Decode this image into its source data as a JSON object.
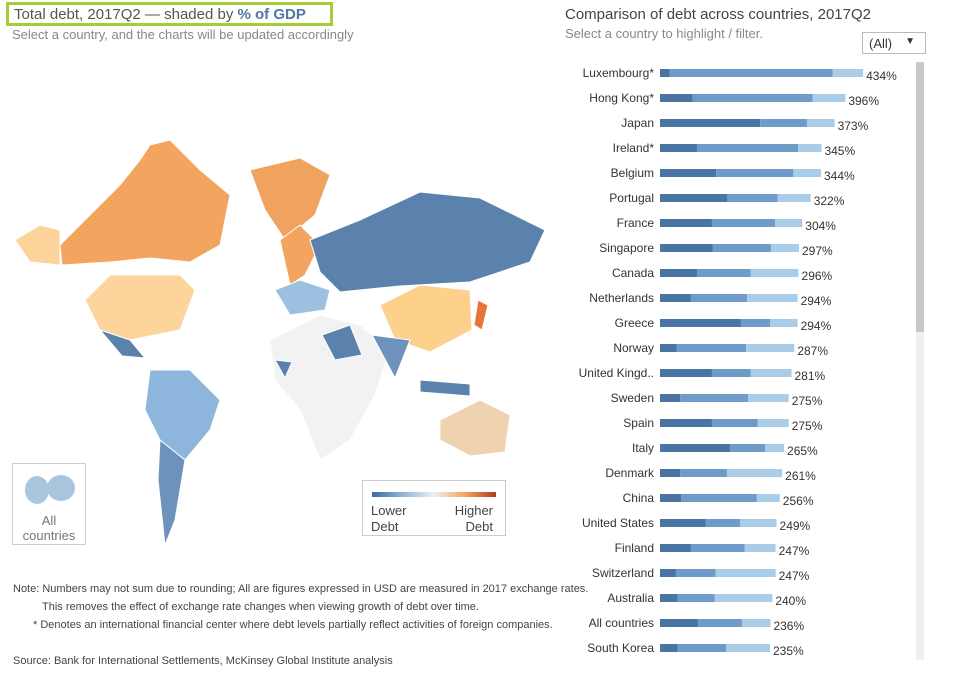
{
  "header": {
    "title": "Total debt, 2017Q2 — shaded by",
    "title_emph": "% of GDP",
    "subtitle": "Select a country, and the charts will be updated accordingly"
  },
  "map": {
    "all_button": [
      "All",
      "countries"
    ],
    "legend_low": [
      "Lower",
      "Debt"
    ],
    "legend_high": [
      "Higher",
      "Debt"
    ]
  },
  "notes": [
    "Note: Numbers may not sum due to rounding;   All are figures expressed in USD are measured in 2017 exchange rates.",
    "This removes the effect of exchange rate changes when viewing growth of debt over time.",
    "* Denotes an international financial center where debt levels partially reflect activities of foreign companies."
  ],
  "source": "Source: Bank for International Settlements, McKinsey Global Institute analysis",
  "chart_data": {
    "type": "stacked-bar",
    "title": "Comparison of debt across countries, 2017Q2",
    "subtitle": "Select a country to highlight / filter.",
    "filter": "(All)",
    "categories": [
      "Luxembourg*",
      "Hong Kong*",
      "Japan",
      "Ireland*",
      "Belgium",
      "Portugal",
      "France",
      "Singapore",
      "Canada",
      "Netherlands",
      "Greece",
      "Norway",
      "United Kingd..",
      "Sweden",
      "Spain",
      "Italy",
      "Denmark",
      "China",
      "United States",
      "Finland",
      "Switzerland",
      "Australia",
      "All countries",
      "South Korea"
    ],
    "series": [
      {
        "color": "#4a74a4",
        "values": [
          21,
          70,
          214,
          79,
          120,
          144,
          111,
          113,
          79,
          66,
          173,
          36,
          111,
          43,
          111,
          150,
          43,
          45,
          98,
          66,
          34,
          38,
          81,
          38
        ]
      },
      {
        "color": "#6f9bc8",
        "values": [
          348,
          256,
          100,
          216,
          165,
          107,
          135,
          124,
          115,
          120,
          62,
          148,
          83,
          145,
          98,
          75,
          100,
          162,
          73,
          115,
          85,
          79,
          94,
          103
        ]
      },
      {
        "color": "#a9cde8",
        "values": [
          65,
          70,
          59,
          50,
          59,
          71,
          58,
          60,
          102,
          108,
          59,
          103,
          87,
          87,
          66,
          40,
          118,
          49,
          78,
          66,
          128,
          123,
          61,
          94
        ]
      }
    ],
    "totals": [
      434,
      396,
      373,
      345,
      344,
      322,
      304,
      297,
      296,
      294,
      294,
      287,
      281,
      275,
      275,
      265,
      261,
      256,
      249,
      247,
      247,
      240,
      236,
      235
    ],
    "total_labels": [
      "434%",
      "396%",
      "373%",
      "345%",
      "344%",
      "322%",
      "304%",
      "297%",
      "296%",
      "294%",
      "294%",
      "287%",
      "281%",
      "275%",
      "275%",
      "265%",
      "261%",
      "256%",
      "249%",
      "247%",
      "247%",
      "240%",
      "236%",
      "235%"
    ]
  }
}
